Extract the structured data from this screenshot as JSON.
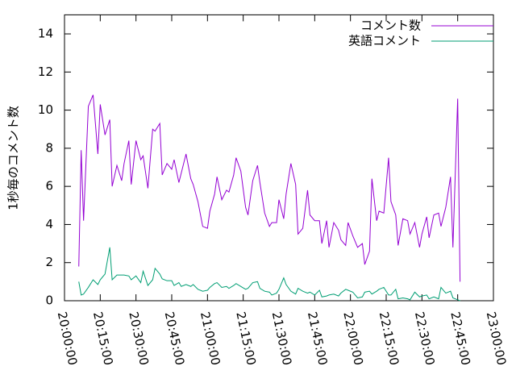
{
  "chart_data": {
    "type": "line",
    "y_label": "1秒毎のコメント数",
    "x": [
      "20:06:00",
      "20:07:00",
      "20:08:00",
      "20:10:00",
      "20:12:00",
      "20:14:00",
      "20:15:00",
      "20:17:00",
      "20:19:00",
      "20:20:00",
      "20:22:00",
      "20:24:00",
      "20:25:00",
      "20:27:00",
      "20:28:00",
      "20:30:00",
      "20:32:00",
      "20:33:00",
      "20:35:00",
      "20:37:00",
      "20:38:00",
      "20:40:00",
      "20:41:00",
      "20:43:00",
      "20:45:00",
      "20:46:00",
      "20:48:00",
      "20:49:00",
      "20:51:00",
      "20:53:00",
      "20:54:00",
      "20:56:00",
      "20:58:00",
      "21:00:00",
      "21:01:00",
      "21:03:00",
      "21:04:00",
      "21:06:00",
      "21:08:00",
      "21:09:00",
      "21:11:00",
      "21:12:00",
      "21:14:00",
      "21:16:00",
      "21:17:00",
      "21:19:00",
      "21:21:00",
      "21:22:00",
      "21:24:00",
      "21:26:00",
      "21:27:00",
      "21:29:00",
      "21:30:00",
      "21:32:00",
      "21:33:00",
      "21:35:00",
      "21:37:00",
      "21:38:00",
      "21:40:00",
      "21:42:00",
      "21:43:00",
      "21:45:00",
      "21:47:00",
      "21:48:00",
      "21:50:00",
      "21:51:00",
      "21:53:00",
      "21:55:00",
      "21:56:00",
      "21:58:00",
      "21:59:00",
      "22:01:00",
      "22:03:00",
      "22:05:00",
      "22:06:00",
      "22:08:00",
      "22:09:00",
      "22:11:00",
      "22:12:00",
      "22:14:00",
      "22:16:00",
      "22:17:00",
      "22:19:00",
      "22:20:00",
      "22:22:00",
      "22:24:00",
      "22:25:00",
      "22:27:00",
      "22:29:00",
      "22:30:00",
      "22:32:00",
      "22:33:00",
      "22:35:00",
      "22:37:00",
      "22:38:00",
      "22:40:00",
      "22:42:00",
      "22:43:00",
      "22:45:00",
      "22:46:00"
    ],
    "series": [
      {
        "name": "コメント数",
        "color": "#9400d3",
        "values": [
          1.8,
          7.9,
          4.2,
          10.2,
          10.8,
          7.7,
          10.3,
          8.7,
          9.5,
          6.0,
          7.1,
          6.3,
          7.2,
          8.4,
          6.1,
          8.4,
          7.4,
          7.6,
          5.9,
          9.0,
          8.9,
          9.3,
          6.6,
          7.2,
          6.9,
          7.4,
          6.2,
          6.7,
          7.7,
          6.4,
          6.1,
          5.2,
          3.9,
          3.8,
          4.7,
          5.6,
          6.5,
          5.3,
          5.8,
          5.7,
          6.6,
          7.5,
          6.8,
          4.9,
          4.5,
          6.3,
          7.1,
          6.2,
          4.6,
          3.9,
          4.1,
          4.1,
          5.3,
          4.3,
          5.6,
          7.2,
          6.1,
          3.5,
          3.8,
          5.8,
          4.5,
          4.2,
          4.2,
          3.0,
          4.2,
          2.8,
          4.1,
          3.7,
          3.2,
          2.9,
          4.1,
          3.4,
          2.8,
          3.0,
          1.9,
          2.6,
          6.4,
          4.2,
          4.7,
          4.6,
          7.5,
          5.2,
          4.5,
          2.9,
          4.3,
          4.2,
          3.5,
          4.1,
          2.8,
          3.5,
          4.4,
          3.3,
          4.5,
          4.6,
          3.9,
          4.9,
          6.5,
          2.8,
          10.6,
          1.0
        ]
      },
      {
        "name": "英語コメント",
        "color": "#009e73",
        "values": [
          1.0,
          0.3,
          0.35,
          0.7,
          1.1,
          0.85,
          1.1,
          1.4,
          2.8,
          1.1,
          1.35,
          1.35,
          1.35,
          1.3,
          1.1,
          1.3,
          0.95,
          1.55,
          0.8,
          1.1,
          1.7,
          1.4,
          1.15,
          1.05,
          1.05,
          0.8,
          0.95,
          0.75,
          0.85,
          0.75,
          0.85,
          0.6,
          0.5,
          0.55,
          0.7,
          0.9,
          0.95,
          0.7,
          0.75,
          0.65,
          0.8,
          0.9,
          0.75,
          0.6,
          0.65,
          0.95,
          1.0,
          0.65,
          0.5,
          0.45,
          0.3,
          0.4,
          0.6,
          1.2,
          0.85,
          0.5,
          0.35,
          0.65,
          0.5,
          0.4,
          0.45,
          0.3,
          0.55,
          0.2,
          0.25,
          0.3,
          0.35,
          0.25,
          0.4,
          0.6,
          0.55,
          0.45,
          0.15,
          0.2,
          0.45,
          0.5,
          0.35,
          0.5,
          0.6,
          0.7,
          0.3,
          0.3,
          0.6,
          0.1,
          0.15,
          0.1,
          0.05,
          0.45,
          0.2,
          0.25,
          0.3,
          0.1,
          0.2,
          0.1,
          0.7,
          0.4,
          0.5,
          0.15,
          0.05,
          0.0
        ]
      }
    ],
    "xlim": [
      "20:00:00",
      "23:00:00"
    ],
    "xticks": [
      "20:00:00",
      "20:15:00",
      "20:30:00",
      "20:45:00",
      "21:00:00",
      "21:15:00",
      "21:30:00",
      "21:45:00",
      "22:00:00",
      "22:15:00",
      "22:30:00",
      "22:45:00",
      "23:00:00"
    ],
    "ylim": [
      0,
      15
    ],
    "yticks": [
      0,
      2,
      4,
      6,
      8,
      10,
      12,
      14
    ],
    "legend": "top-right",
    "grid": false
  }
}
